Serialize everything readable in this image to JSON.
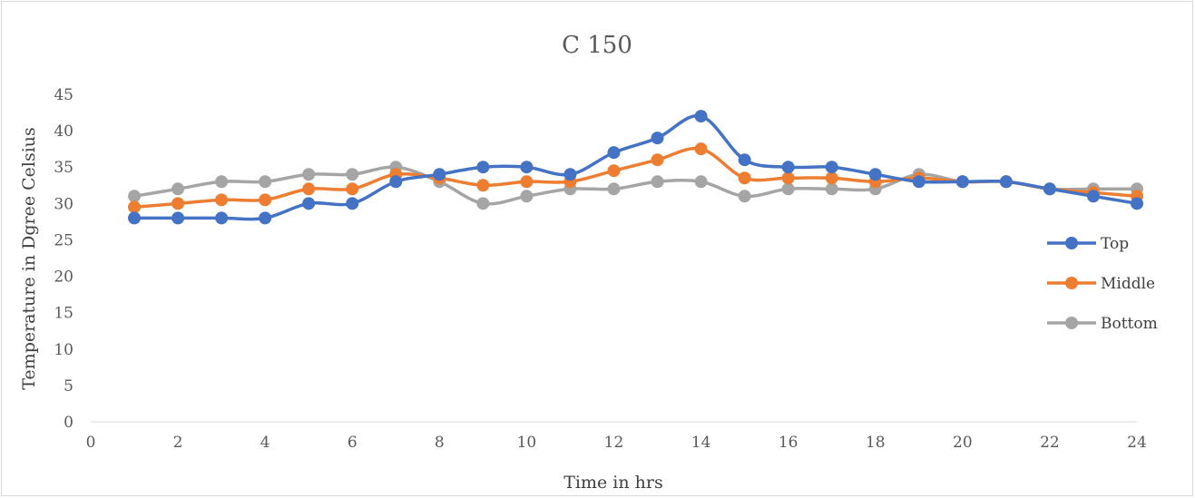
{
  "chart_data": {
    "type": "line",
    "title": "C 150",
    "xlabel": "Time in hrs",
    "ylabel": "Temperature in Dgree Celsius",
    "xlim": [
      0,
      24
    ],
    "ylim": [
      0,
      45
    ],
    "x_ticks": [
      0,
      2,
      4,
      6,
      8,
      10,
      12,
      14,
      16,
      18,
      20,
      22,
      24
    ],
    "y_ticks": [
      0,
      5,
      10,
      15,
      20,
      25,
      30,
      35,
      40,
      45
    ],
    "grid": false,
    "legend_position": "right",
    "smooth": true,
    "x": [
      1,
      2,
      3,
      4,
      5,
      6,
      7,
      8,
      9,
      10,
      11,
      12,
      13,
      14,
      15,
      16,
      17,
      18,
      19,
      20,
      21,
      22,
      23,
      24
    ],
    "series": [
      {
        "name": "Top",
        "color": "#4472C4",
        "values": [
          28,
          28,
          28,
          28,
          30,
          30,
          33,
          34,
          35,
          35,
          34,
          37,
          39,
          42,
          36,
          35,
          35,
          34,
          33,
          33,
          33,
          32,
          31,
          30
        ]
      },
      {
        "name": "Middle",
        "color": "#ED7D31",
        "values": [
          29.5,
          30,
          30.5,
          30.5,
          32,
          32,
          34,
          33.5,
          32.5,
          33,
          33,
          34.5,
          36,
          37.5,
          33.5,
          33.5,
          33.5,
          33,
          33.5,
          33,
          33,
          32,
          31.5,
          31
        ]
      },
      {
        "name": "Bottom",
        "color": "#A5A5A5",
        "values": [
          31,
          32,
          33,
          33,
          34,
          34,
          35,
          33,
          30,
          31,
          32,
          32,
          33,
          33,
          31,
          32,
          32,
          32,
          34,
          33,
          33,
          32,
          32,
          32
        ]
      }
    ]
  }
}
